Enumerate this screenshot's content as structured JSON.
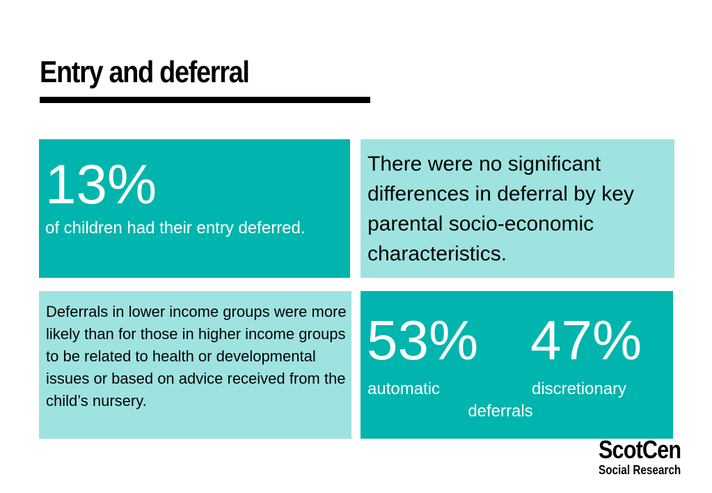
{
  "title": "Entry and deferral",
  "box1": {
    "stat": "13%",
    "text": "of children had their entry deferred."
  },
  "box2": {
    "text": "There were no significant differences in deferral by key parental socio-economic characteristics."
  },
  "box3": {
    "text": "Deferrals in lower income groups were more likely than for those in higher income groups to be related to health or developmental issues or based on advice received from the child’s nursery."
  },
  "box4": {
    "stat1": "53%",
    "label1": "automatic",
    "stat2": "47%",
    "label2": "discretionary",
    "caption": "deferrals"
  },
  "logo": {
    "name": "ScotCen",
    "tagline": "Social Research"
  },
  "colors": {
    "dark_teal": "#00b5ad",
    "light_teal": "#9ee3e0"
  }
}
